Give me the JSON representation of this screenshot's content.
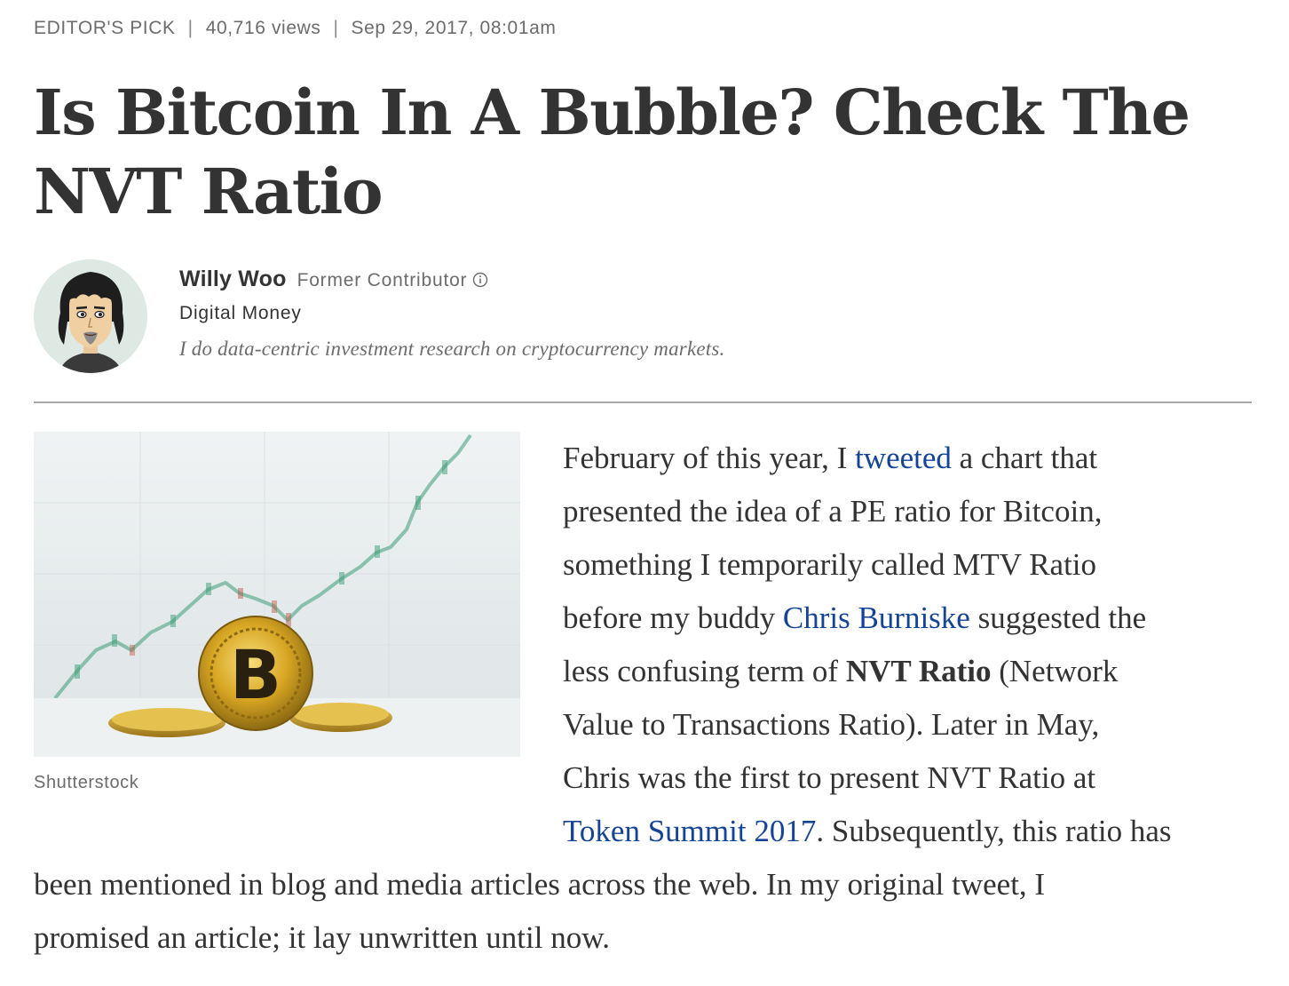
{
  "meta": {
    "label": "EDITOR'S PICK",
    "views": "40,716 views",
    "date": "Sep 29, 2017, 08:01am"
  },
  "article": {
    "title_line1": "Is Bitcoin In A Bubble? Check The",
    "title_line2": "NVT Ratio"
  },
  "author": {
    "name": "Willy Woo",
    "role": "Former Contributor",
    "channel": "Digital Money",
    "bio": "I do data-centric investment research on cryptocurrency markets."
  },
  "image": {
    "caption": "Shutterstock",
    "coin_letter": "B"
  },
  "body": {
    "p1_l1_a": "February of this year, I ",
    "p1_link_tweeted": "tweeted",
    "p1_l1_b": " a chart that",
    "p1_l2": "presented the idea of a PE ratio for Bitcoin,",
    "p1_l3": "something I temporarily called MTV Ratio",
    "p1_l4_a": "before my buddy ",
    "p1_link_chris": "Chris Burniske",
    "p1_l4_b": " suggested the",
    "p1_l5_a": "less confusing term of ",
    "p1_l5_bold": "NVT Ratio",
    "p1_l5_b": " (Network",
    "p1_l6": "Value to Transactions Ratio). Later in May,",
    "p1_l7": "Chris was the first to present NVT Ratio at",
    "p1_link_summit": "Token Summit 2017",
    "p1_l8_b": ". Subsequently, this ratio has",
    "p1_l9": "been mentioned in blog and media articles across the web. In my original tweet, I",
    "p1_l10": "promised an article; it lay unwritten until now."
  },
  "colors": {
    "link": "#13449a",
    "text": "#333333",
    "muted": "#6c6c6c",
    "coin_gold": "#d8a623"
  },
  "icons": {
    "info": "info-circle-icon"
  }
}
